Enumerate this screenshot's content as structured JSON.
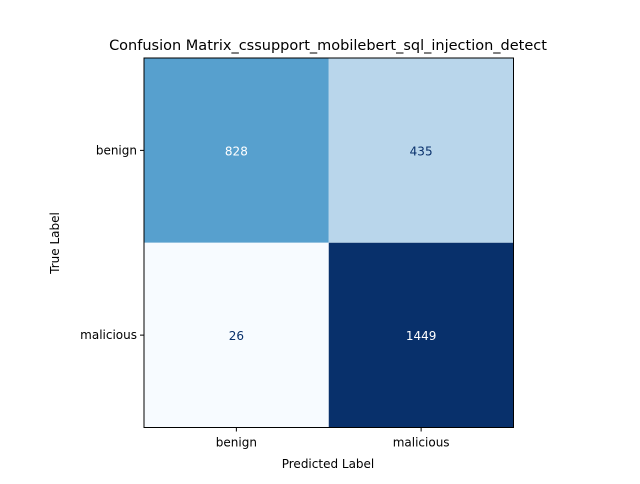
{
  "chart_data": {
    "type": "heatmap",
    "title": "Confusion Matrix_cssupport_mobilebert_sql_injection_detect",
    "xlabel": "Predicted Label",
    "ylabel": "True Label",
    "x_categories": [
      "benign",
      "malicious"
    ],
    "y_categories": [
      "benign",
      "malicious"
    ],
    "matrix": [
      [
        828,
        435
      ],
      [
        26,
        1449
      ]
    ],
    "colormap": "Blues",
    "colors": {
      "cells": [
        [
          "#57a0ce",
          "#b9d6eb"
        ],
        [
          "#f7fbff",
          "#08306b"
        ]
      ],
      "text": [
        [
          "#ffffff",
          "#08306b"
        ],
        [
          "#08306b",
          "#ffffff"
        ]
      ]
    },
    "grid": false,
    "colorbar": false
  }
}
